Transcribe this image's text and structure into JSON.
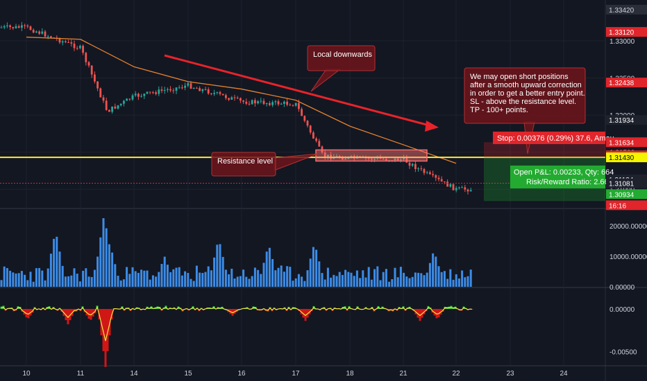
{
  "chart_data": {
    "type": "candlestick",
    "price_axis": {
      "ticks": [
        "1.33000",
        "1.32500",
        "1.32000",
        "1.31500",
        "1.31000"
      ],
      "badges": [
        {
          "text": "1.33420",
          "price": 1.3342,
          "color": "#2a2e39",
          "text_color": "#d1d4dc"
        },
        {
          "text": "1.33120",
          "price": 1.3312,
          "color": "#e0252b",
          "text_color": "#ffffff"
        },
        {
          "text": "1.32438",
          "price": 1.32438,
          "color": "#e0252b",
          "text_color": "#ffffff"
        },
        {
          "text": "1.31934",
          "price": 1.31934,
          "color": "#1e222d",
          "text_color": "#ffffff"
        },
        {
          "text": "1.31634",
          "price": 1.31634,
          "color": "#e0252b",
          "text_color": "#ffffff"
        },
        {
          "text": "1.31457",
          "price": 1.31457,
          "color": "#e0252b",
          "text_color": "#ffffff"
        },
        {
          "text": "1.31430",
          "price": 1.3143,
          "color": "#f5f500",
          "text_color": "#000000"
        },
        {
          "text": "1.31134",
          "price": 1.31134,
          "color": "#1e222d",
          "text_color": "#ffffff"
        },
        {
          "text": "1.31081",
          "price": 1.31081,
          "color": "#1e222d",
          "text_color": "#ffffff"
        },
        {
          "text": "1.30934",
          "price": 1.30934,
          "color": "#22ab30",
          "text_color": "#ffffff"
        },
        {
          "text": "16:16",
          "price": 1.30785,
          "color": "#e0252b",
          "text_color": "#ffffff"
        }
      ]
    },
    "x_axis": {
      "labels": [
        "10",
        "11",
        "14",
        "15",
        "16",
        "17",
        "18",
        "21",
        "22",
        "23",
        "24"
      ]
    },
    "price_series_approx": [
      {
        "x": "10",
        "price": 1.3318
      },
      {
        "x": "11",
        "price": 1.329
      },
      {
        "x": "11.5",
        "price": 1.3205
      },
      {
        "x": "14",
        "price": 1.3225
      },
      {
        "x": "15",
        "price": 1.324
      },
      {
        "x": "16",
        "price": 1.3218
      },
      {
        "x": "17",
        "price": 1.3215
      },
      {
        "x": "17.5",
        "price": 1.3145
      },
      {
        "x": "18",
        "price": 1.3142
      },
      {
        "x": "21",
        "price": 1.314
      },
      {
        "x": "21.5",
        "price": 1.3118
      },
      {
        "x": "22",
        "price": 1.31
      }
    ],
    "moving_average_approx": [
      {
        "x": "10",
        "price": 1.3305
      },
      {
        "x": "11",
        "price": 1.3302
      },
      {
        "x": "14",
        "price": 1.3265
      },
      {
        "x": "15",
        "price": 1.3245
      },
      {
        "x": "16",
        "price": 1.3235
      },
      {
        "x": "17",
        "price": 1.322
      },
      {
        "x": "18",
        "price": 1.3185
      },
      {
        "x": "21",
        "price": 1.316
      },
      {
        "x": "22",
        "price": 1.3135
      }
    ],
    "lines": {
      "resistance": 1.3143,
      "stop": 1.31634,
      "target": 1.30934,
      "current": 1.31081
    },
    "volume": {
      "axis_ticks": [
        "20000.00000",
        "10000.00000",
        "0.00000"
      ],
      "max": 25000
    },
    "oscillator": {
      "axis_ticks": [
        "0.00000",
        "-0.00500"
      ]
    },
    "annotations": {
      "local_downwards": "Local downwards",
      "resistance_level": "Resistance level",
      "idea": [
        "We may open short positions",
        "after a smooth upward correction",
        "in order to get a better entry point.",
        "SL - above the resistance level.",
        "TP - 100+ points."
      ],
      "stop_label": "Stop: 0.00376 (0.29%) 37.6, Amou",
      "pnl_line1": "Open P&L: 0.00233, Qty: 664",
      "pnl_line2": "Risk/Reward Ratio: 2.66"
    },
    "colors": {
      "background": "#131722",
      "up": "#26a69a",
      "down": "#ef5350",
      "ma": "#e8822e",
      "resistance": "#ffeb3b",
      "trend_arrow": "#e8232a",
      "volume": "#3c8ce7",
      "osc_up": "#35c535",
      "osc_down": "#d11616",
      "osc_line": "#f5e642"
    }
  }
}
